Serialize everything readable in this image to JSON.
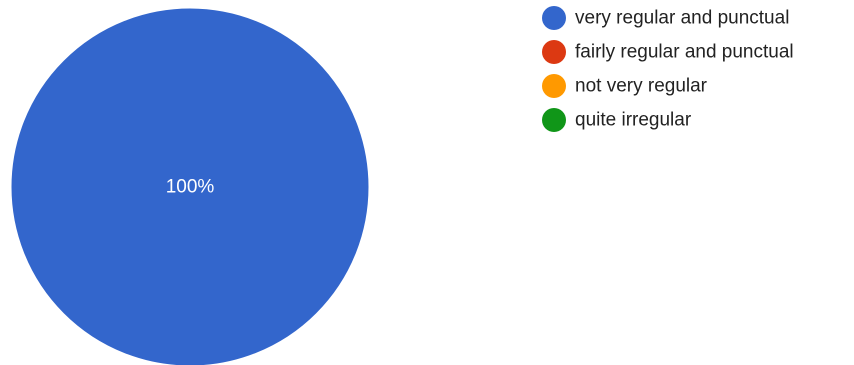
{
  "chart_data": {
    "type": "pie",
    "categories": [
      "very regular and punctual",
      "fairly regular and punctual",
      "not very regular",
      "quite irregular"
    ],
    "values": [
      100,
      0,
      0,
      0
    ],
    "colors": [
      "#3366cc",
      "#dc3912",
      "#ff9900",
      "#109618"
    ],
    "data_labels": [
      "100%",
      "",
      "",
      ""
    ],
    "title": "",
    "legend_position": "right"
  }
}
